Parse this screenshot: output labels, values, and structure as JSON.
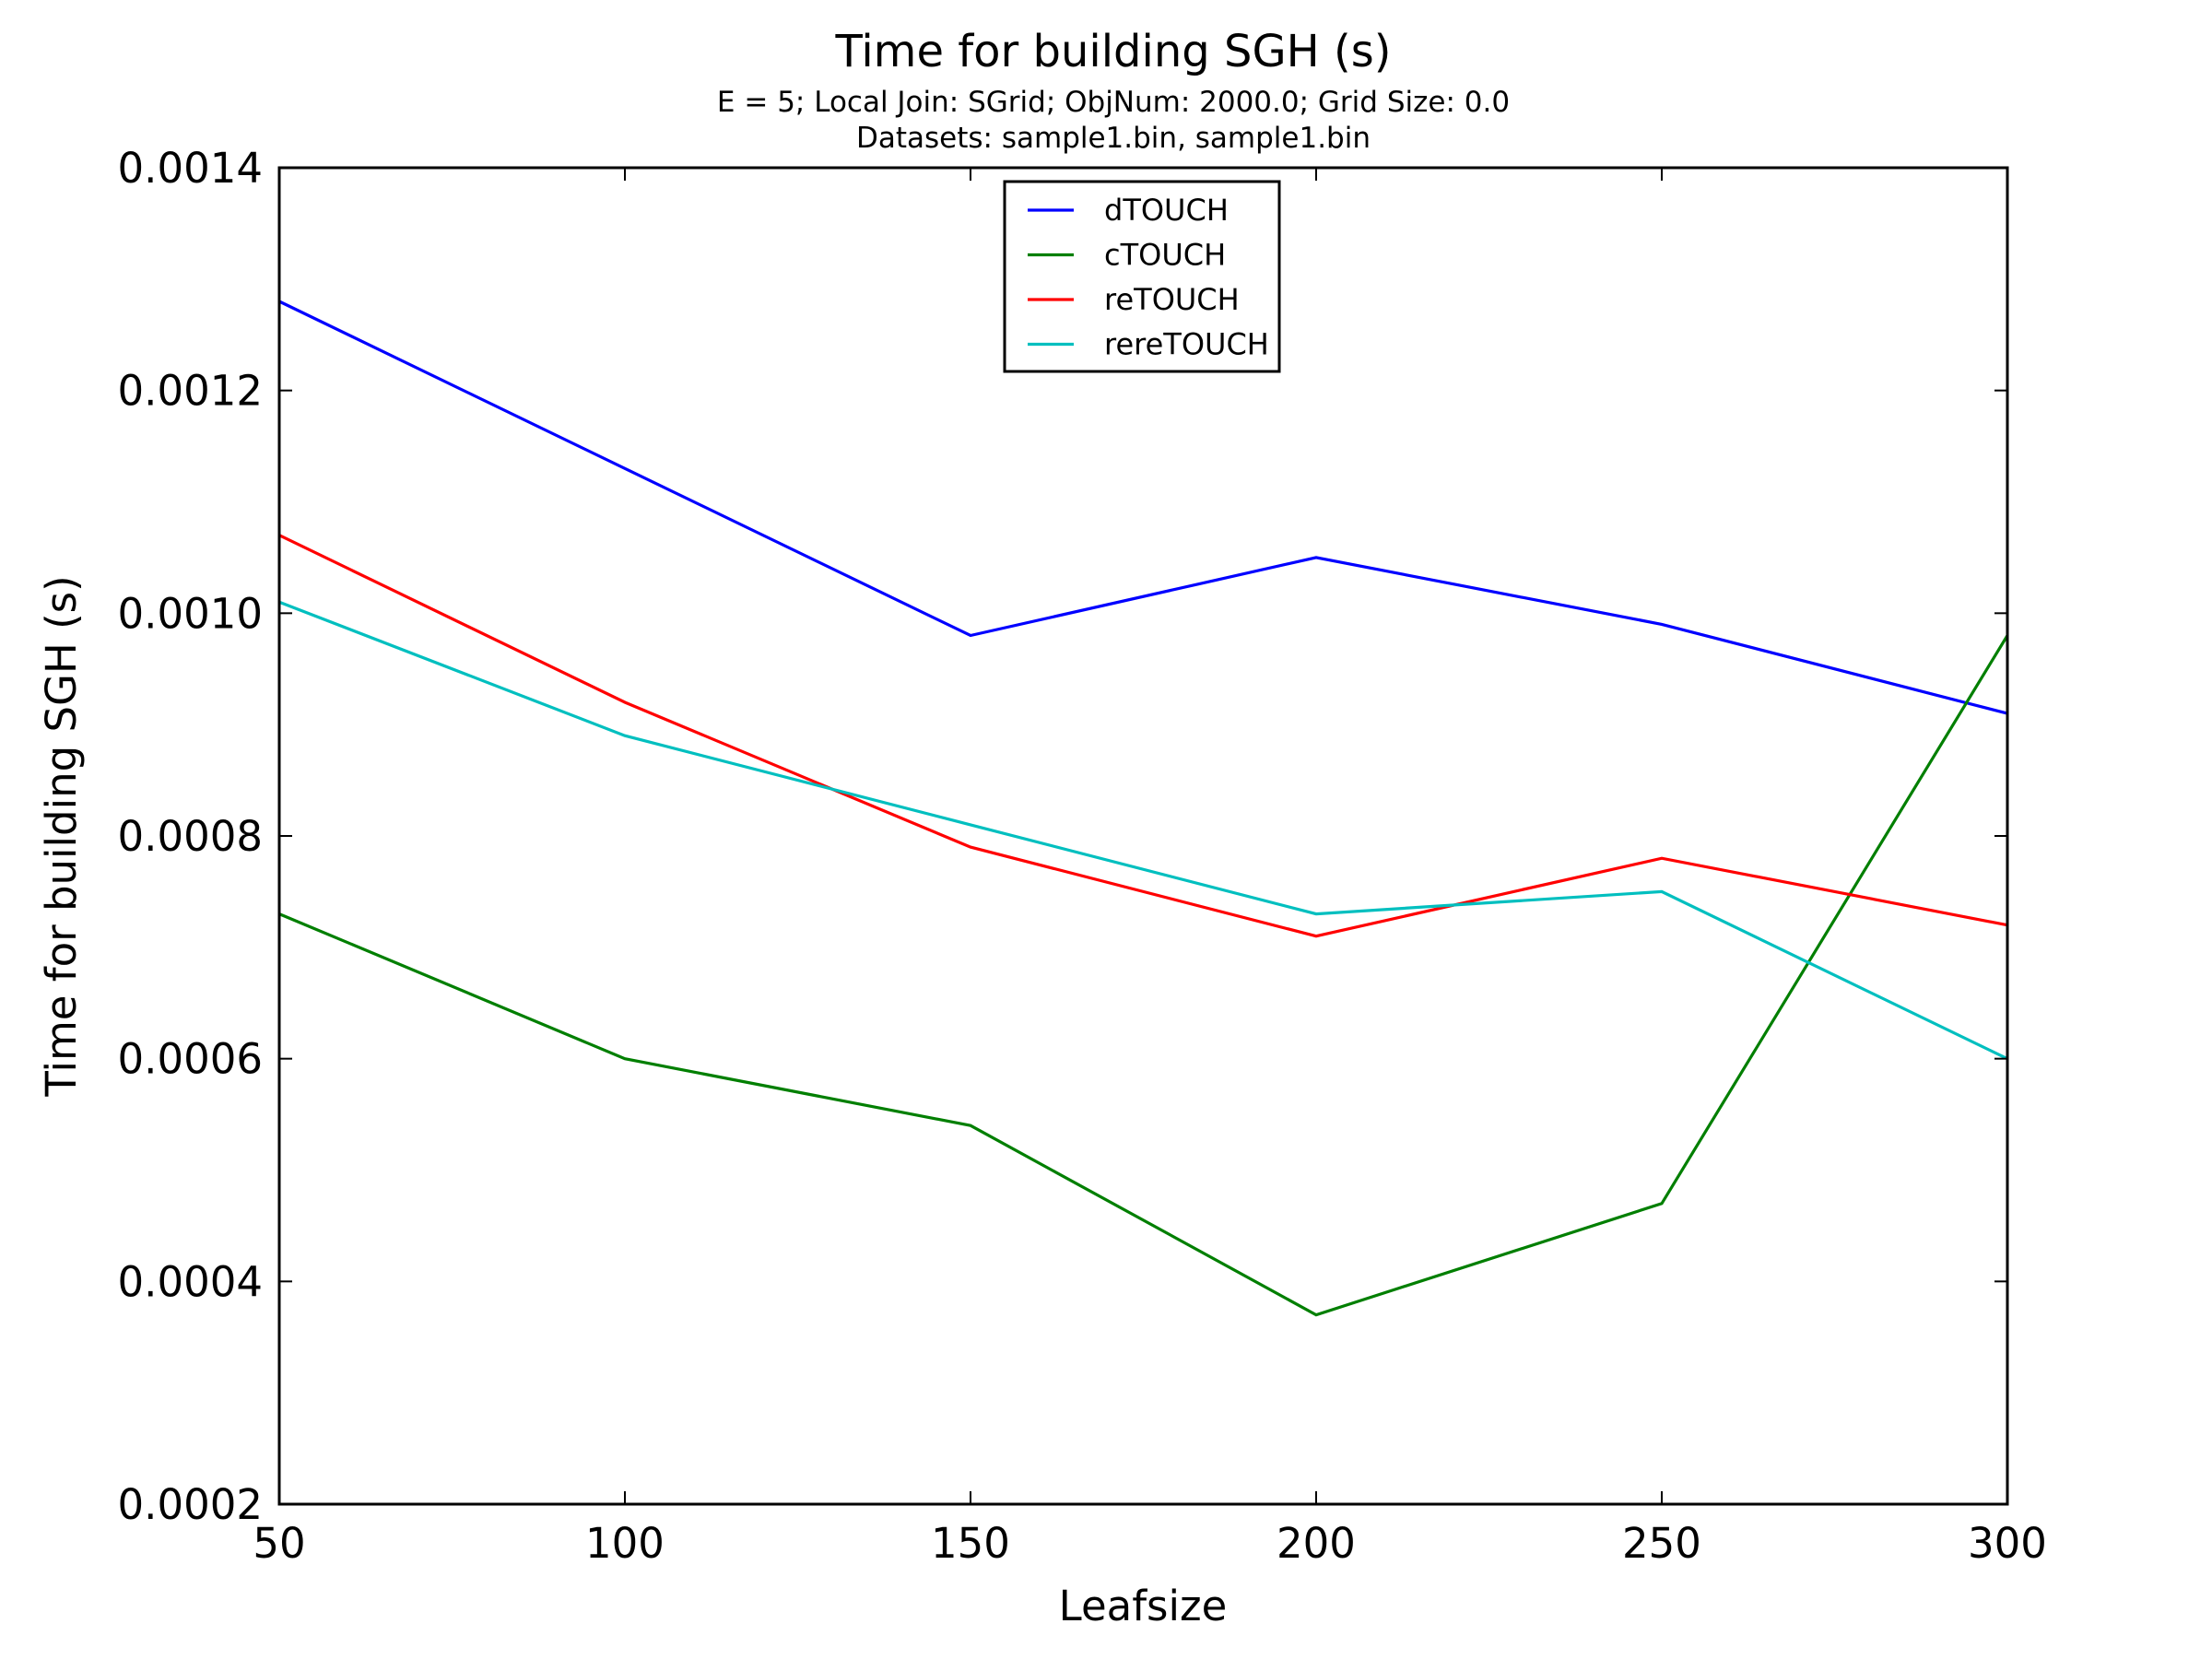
{
  "chart_data": {
    "type": "line",
    "title": "Time for building SGH (s)",
    "subtitle_lines": [
      "E = 5; Local Join: SGrid; ObjNum: 2000.0; Grid Size: 0.0",
      "Datasets: sample1.bin, sample1.bin"
    ],
    "xlabel": "Leafsize",
    "ylabel": "Time for building SGH (s)",
    "x": [
      50,
      100,
      150,
      200,
      250,
      300
    ],
    "xlim": [
      50,
      300
    ],
    "ylim": [
      0.0002,
      0.0014
    ],
    "x_ticks": [
      50,
      100,
      150,
      200,
      250,
      300
    ],
    "y_ticks": [
      0.0002,
      0.0004,
      0.0006,
      0.0008,
      0.001,
      0.0012,
      0.0014
    ],
    "x_tick_labels": [
      "50",
      "100",
      "150",
      "200",
      "250",
      "300"
    ],
    "y_tick_labels": [
      "0.0002",
      "0.0004",
      "0.0006",
      "0.0008",
      "0.0010",
      "0.0012",
      "0.0014"
    ],
    "grid": false,
    "legend_position": "top-center",
    "series": [
      {
        "name": "dTOUCH",
        "color": "#0000ff",
        "values": [
          0.00128,
          0.00113,
          0.00098,
          0.00105,
          0.00099,
          0.00091
        ]
      },
      {
        "name": "cTOUCH",
        "color": "#007f00",
        "values": [
          0.00073,
          0.0006,
          0.00054,
          0.00037,
          0.00047,
          0.00098
        ]
      },
      {
        "name": "reTOUCH",
        "color": "#ff0000",
        "values": [
          0.00107,
          0.00092,
          0.00079,
          0.00071,
          0.00078,
          0.00072
        ]
      },
      {
        "name": "rereTOUCH",
        "color": "#00bfbf",
        "values": [
          0.00101,
          0.00089,
          0.00081,
          0.00073,
          0.00075,
          0.0006
        ]
      }
    ]
  }
}
